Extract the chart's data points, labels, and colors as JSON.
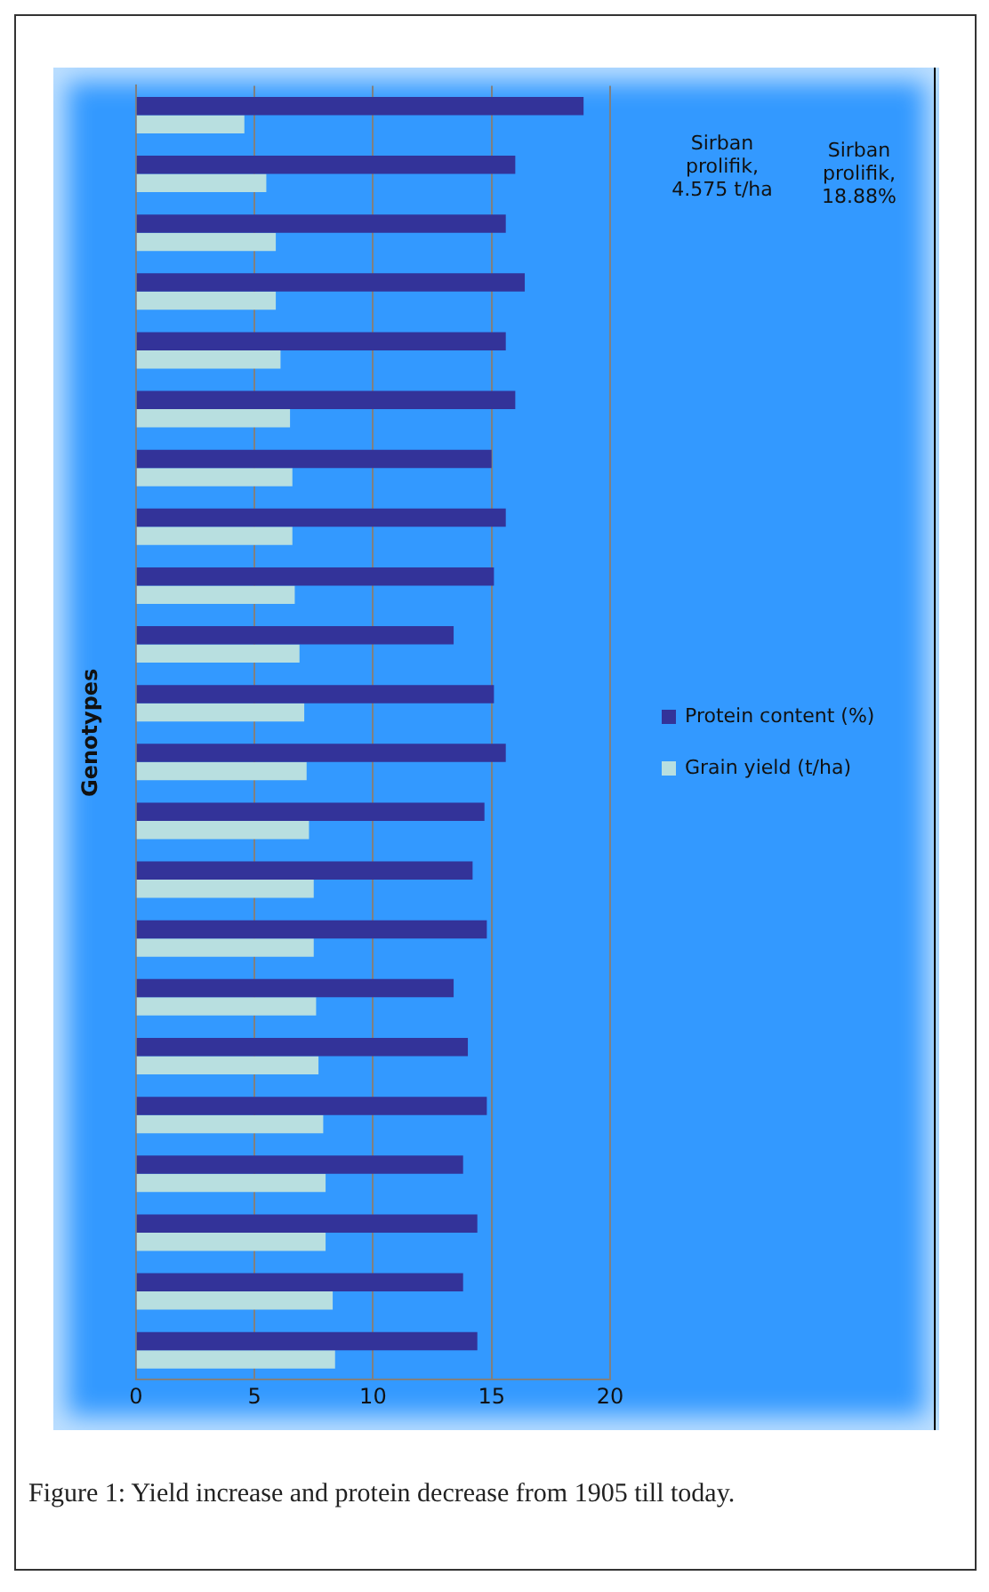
{
  "chart_data": {
    "type": "bar",
    "orientation": "horizontal",
    "ylabel": "Genotypes",
    "categories": [
      null,
      null,
      null,
      null,
      null,
      null,
      null,
      null,
      null,
      null,
      null,
      null,
      null,
      null,
      null,
      null,
      null,
      null,
      null,
      null,
      null,
      null
    ],
    "series": [
      {
        "name": "Protein content (%)",
        "color": "#333399",
        "values": [
          18.88,
          16.0,
          15.6,
          16.4,
          15.6,
          16.0,
          15.0,
          15.6,
          15.1,
          13.4,
          15.1,
          15.6,
          14.7,
          14.2,
          14.8,
          13.4,
          14.0,
          14.8,
          13.8,
          14.4,
          13.8,
          14.4
        ]
      },
      {
        "name": "Grain yield (t/ha)",
        "color": "#b8dfe0",
        "values": [
          4.575,
          5.5,
          5.9,
          5.9,
          6.1,
          6.5,
          6.6,
          6.6,
          6.7,
          6.9,
          7.1,
          7.2,
          7.3,
          7.5,
          7.5,
          7.6,
          7.7,
          7.9,
          8.0,
          8.0,
          8.3,
          8.4
        ]
      }
    ],
    "xlim": [
      0,
      20
    ],
    "xticks": [
      0,
      5,
      10,
      15,
      20
    ],
    "grid": "x",
    "legend": "right",
    "annotations": [
      "Sirban prolifik, 4.575 t/ha",
      "Sirban prolifik, 18.88%",
      "Figure 1: Yield increase and protein decrease from 1905 till today."
    ]
  }
}
